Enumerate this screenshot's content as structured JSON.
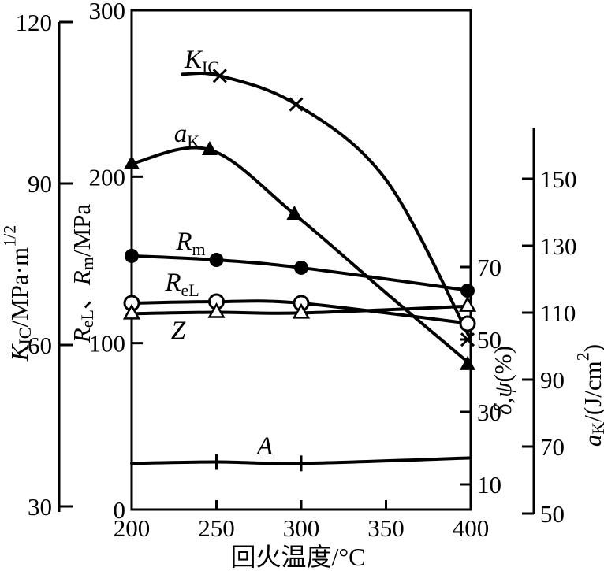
{
  "chart_data": {
    "type": "line",
    "title": "",
    "xlabel": "回火温度/°C",
    "xlabel_segs": [
      {
        "t": "回火温度/°C",
        "s": "n"
      }
    ],
    "x_axis": {
      "range": [
        200,
        400
      ],
      "ticks": [
        200,
        250,
        300,
        350,
        400
      ]
    },
    "grid": false,
    "legend": "inline-curve-labels",
    "y_axes": [
      {
        "id": "kic",
        "side": "outer-left",
        "label": "K_IC/MPa·m^1/2",
        "ticks": [
          30,
          60,
          90,
          120
        ],
        "range": [
          30,
          120
        ],
        "title_segs": [
          {
            "t": "K",
            "s": "i"
          },
          {
            "t": "IC",
            "s": "sub"
          },
          {
            "t": "/MPa·m",
            "s": "n"
          },
          {
            "t": "1/2",
            "s": "sup"
          }
        ]
      },
      {
        "id": "r",
        "side": "inner-left",
        "label": "R_eL、R_m/MPa",
        "ticks": [
          0,
          100,
          200,
          300
        ],
        "range": [
          0,
          300
        ],
        "title_segs": [
          {
            "t": "R",
            "s": "i"
          },
          {
            "t": "eL",
            "s": "sub"
          },
          {
            "t": "、",
            "s": "n"
          },
          {
            "t": "R",
            "s": "i"
          },
          {
            "t": "m",
            "s": "sub"
          },
          {
            "t": "/MPa",
            "s": "n"
          }
        ]
      },
      {
        "id": "dp",
        "side": "inner-right",
        "label": "δ,ψ(%)",
        "ticks": [
          10,
          30,
          50,
          70
        ],
        "range": [
          10,
          75
        ],
        "title_segs": [
          {
            "t": "δ",
            "s": "i"
          },
          {
            "t": ",",
            "s": "n"
          },
          {
            "t": "ψ",
            "s": "i"
          },
          {
            "t": "(%)",
            "s": "n"
          }
        ]
      },
      {
        "id": "ak",
        "side": "outer-right",
        "label": "a_K/(J/cm^2)",
        "ticks": [
          50,
          70,
          90,
          110,
          130,
          150
        ],
        "range": [
          50,
          165
        ],
        "title_segs": [
          {
            "t": "a",
            "s": "i"
          },
          {
            "t": "K",
            "s": "sub"
          },
          {
            "t": "/(J/cm",
            "s": "n"
          },
          {
            "t": "2",
            "s": "sup"
          },
          {
            "t": ")",
            "s": "n"
          }
        ]
      }
    ],
    "series": [
      {
        "id": "KIC",
        "label": "K_IC",
        "axis": "kic",
        "marker": "x-cross",
        "label_segs": [
          {
            "t": "K",
            "s": "i"
          },
          {
            "t": "IC",
            "s": "sub"
          }
        ],
        "points": [
          {
            "x": 230,
            "y": 110.3,
            "marker": false
          },
          {
            "x": 252,
            "y": 110.0,
            "marker": true
          },
          {
            "x": 297,
            "y": 104.7,
            "marker": true
          },
          {
            "x": 350,
            "y": 90.7,
            "marker": false
          },
          {
            "x": 400,
            "y": 61.0,
            "marker": true
          }
        ]
      },
      {
        "id": "aK",
        "label": "a_K",
        "axis": "ak",
        "marker": "triangle-filled",
        "label_segs": [
          {
            "t": "a",
            "s": "i"
          },
          {
            "t": "K",
            "s": "sub"
          }
        ],
        "points": [
          {
            "x": 200,
            "y": 154.5,
            "marker": true
          },
          {
            "x": 246,
            "y": 158.7,
            "marker": true
          },
          {
            "x": 296,
            "y": 139.4,
            "marker": true
          },
          {
            "x": 350,
            "y": 115.9,
            "marker": false
          },
          {
            "x": 400,
            "y": 94.5,
            "marker": true
          }
        ]
      },
      {
        "id": "Rm",
        "label": "R_m",
        "axis": "r",
        "marker": "circle-filled",
        "label_segs": [
          {
            "t": "R",
            "s": "i"
          },
          {
            "t": "m",
            "s": "sub"
          }
        ],
        "points": [
          {
            "x": 200,
            "y": 152.4,
            "marker": true
          },
          {
            "x": 250,
            "y": 150.0,
            "marker": true
          },
          {
            "x": 300,
            "y": 145.3,
            "marker": true
          },
          {
            "x": 400,
            "y": 131.5,
            "marker": true
          }
        ]
      },
      {
        "id": "ReL",
        "label": "R_eL",
        "axis": "r",
        "marker": "circle-open",
        "label_segs": [
          {
            "t": "R",
            "s": "i"
          },
          {
            "t": "eL",
            "s": "sub"
          }
        ],
        "points": [
          {
            "x": 200,
            "y": 124.0,
            "marker": true
          },
          {
            "x": 250,
            "y": 124.9,
            "marker": true
          },
          {
            "x": 300,
            "y": 124.0,
            "marker": true
          },
          {
            "x": 400,
            "y": 111.7,
            "marker": true
          }
        ]
      },
      {
        "id": "Z",
        "label": "Z",
        "axis": "dp",
        "marker": "triangle-open",
        "label_segs": [
          {
            "t": "Z",
            "s": "i"
          }
        ],
        "points": [
          {
            "x": 200,
            "y": 57.1,
            "marker": true
          },
          {
            "x": 250,
            "y": 57.5,
            "marker": true
          },
          {
            "x": 300,
            "y": 57.3,
            "marker": true
          },
          {
            "x": 400,
            "y": 59.2,
            "marker": true
          }
        ]
      },
      {
        "id": "A",
        "label": "A",
        "axis": "dp",
        "marker": "plus",
        "label_segs": [
          {
            "t": "A",
            "s": "i"
          }
        ],
        "points": [
          {
            "x": 200,
            "y": 15.8,
            "marker": false
          },
          {
            "x": 250,
            "y": 16.2,
            "marker": true
          },
          {
            "x": 300,
            "y": 15.8,
            "marker": true
          },
          {
            "x": 400,
            "y": 17.3,
            "marker": false
          }
        ]
      }
    ],
    "line_color": "#000000",
    "background": "#ffffff"
  }
}
